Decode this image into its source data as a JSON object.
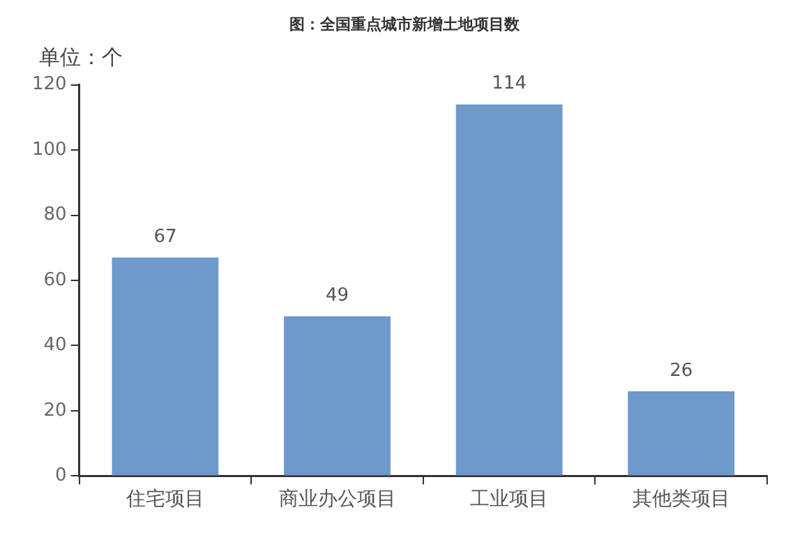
{
  "chart_data": {
    "type": "bar",
    "title": "图：全国重点城市新增土地项目数",
    "ylabel": "单位：个",
    "categories": [
      "住宅项目",
      "商业办公项目",
      "工业项目",
      "其他类项目"
    ],
    "values": [
      67,
      49,
      114,
      26
    ],
    "color": "#6f98cb",
    "ylim": [
      0,
      120
    ],
    "yticks": [
      0,
      20,
      40,
      60,
      80,
      100,
      120
    ],
    "grid": false,
    "legend": false,
    "data_labels": true
  }
}
